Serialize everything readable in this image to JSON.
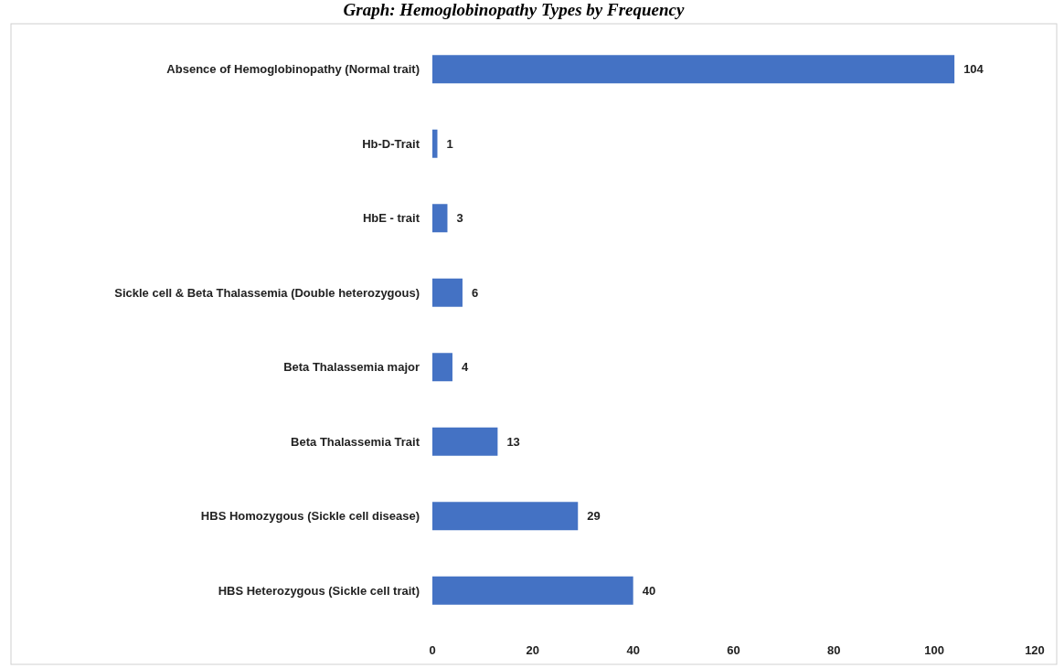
{
  "chart_data": {
    "type": "bar",
    "orientation": "horizontal",
    "title": "Graph: Hemoglobinopathy Types by Frequency",
    "categories": [
      "Absence of Hemoglobinopathy (Normal trait)",
      "Hb-D-Trait",
      "HbE - trait",
      "Sickle cell & Beta Thalassemia (Double heterozygous)",
      "Beta Thalassemia major",
      "Beta Thalassemia Trait",
      "HBS Homozygous (Sickle cell disease)",
      "HBS Heterozygous (Sickle cell trait)"
    ],
    "values": [
      104,
      1,
      3,
      6,
      4,
      13,
      29,
      40
    ],
    "color": "#4472c4",
    "xlim": [
      0,
      120
    ],
    "xticks": [
      0,
      20,
      40,
      60,
      80,
      100,
      120
    ],
    "data_labels": true,
    "grid": false
  }
}
